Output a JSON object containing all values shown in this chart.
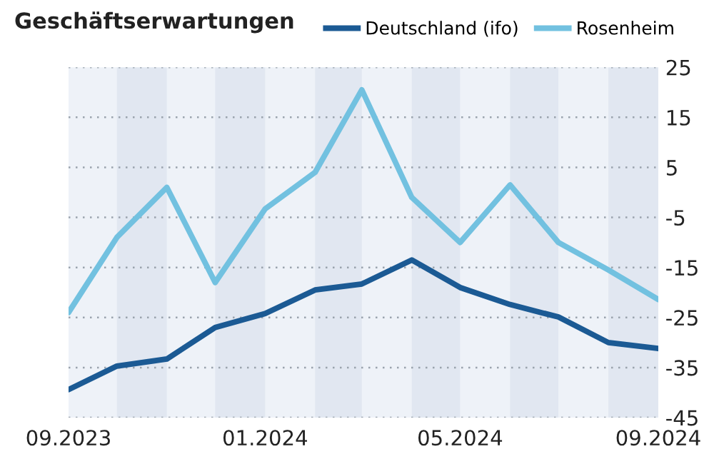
{
  "chart_data": {
    "type": "line",
    "title": "Geschäftserwartungen",
    "x": [
      "2023-09",
      "2023-10",
      "2023-11",
      "2023-12",
      "2024-01",
      "2024-02",
      "2024-03",
      "2024-04",
      "2024-05",
      "2024-06",
      "2024-07",
      "2024-08",
      "2024-09"
    ],
    "series": [
      {
        "name": "Deutschland (ifo)",
        "color": "#1b5a94",
        "values": [
          -39.4,
          -34.7,
          -33.3,
          -27,
          -24.2,
          -19.5,
          -18.3,
          -13.5,
          -19,
          -22.4,
          -24.9,
          -30,
          -31.2
        ]
      },
      {
        "name": "Rosenheim",
        "color": "#72c1e0",
        "values": [
          -24,
          -9,
          1,
          -18,
          -3.3,
          4,
          20.5,
          -1,
          -10,
          1.5,
          -10,
          -15.5,
          -21.4
        ]
      }
    ],
    "xlim": [
      "2023-09",
      "2024-09"
    ],
    "xticks": [
      {
        "value": "2023-09",
        "label": "09.2023"
      },
      {
        "value": "2024-01",
        "label": "01.2024"
      },
      {
        "value": "2024-05",
        "label": "05.2024"
      },
      {
        "value": "2024-09",
        "label": "09.2024"
      }
    ],
    "ylim": [
      -45,
      25
    ],
    "yticks": [
      -45,
      -35,
      -25,
      -15,
      -5,
      5,
      15,
      25
    ],
    "bands": [
      {
        "axis": "x",
        "from": "2023-10",
        "to": "2023-11",
        "color": "#e1e7f1"
      },
      {
        "axis": "x",
        "from": "2023-12",
        "to": "2024-01",
        "color": "#e1e7f1"
      },
      {
        "axis": "x",
        "from": "2024-02",
        "to": "2024-03",
        "color": "#e1e7f1"
      },
      {
        "axis": "x",
        "from": "2024-04",
        "to": "2024-05",
        "color": "#e1e7f1"
      },
      {
        "axis": "x",
        "from": "2024-06",
        "to": "2024-07",
        "color": "#e1e7f1"
      },
      {
        "axis": "x",
        "from": "2024-08",
        "to": "2024-09",
        "color": "#e1e7f1"
      }
    ],
    "grid": "y",
    "legend": "top right",
    "marker": "none",
    "line_style": "solid"
  }
}
